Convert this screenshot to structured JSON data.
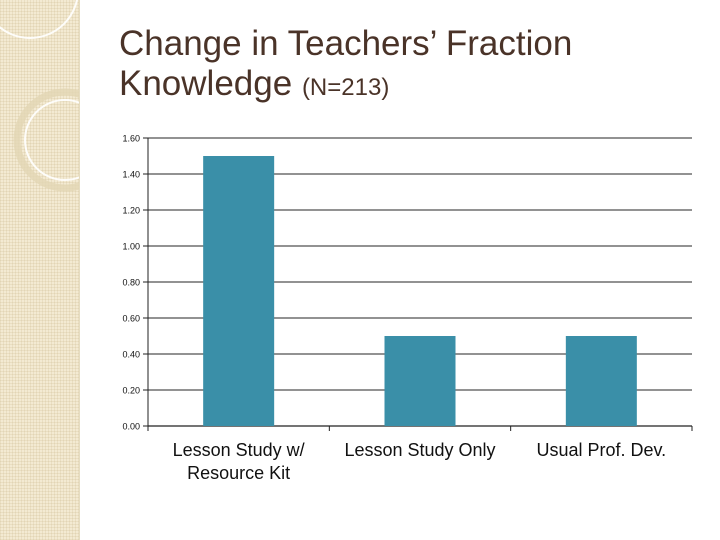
{
  "slide": {
    "title_main": "Change in Teachers’ Fraction Knowledge",
    "title_sub": "(N=213)"
  },
  "colors": {
    "bar": "#3a8fa8",
    "title": "#4a3328",
    "sidebar": "#f3ead2"
  },
  "chart_data": {
    "type": "bar",
    "categories": [
      "Lesson Study w/ Resource Kit",
      "Lesson Study Only",
      "Usual Prof. Dev."
    ],
    "category_lines": [
      [
        "Lesson Study w/",
        "Resource Kit"
      ],
      [
        "Lesson Study Only"
      ],
      [
        "Usual Prof. Dev."
      ]
    ],
    "values": [
      1.5,
      0.5,
      0.5
    ],
    "ylim": [
      0,
      1.6
    ],
    "ytick_labels": [
      "0.00",
      "0.20",
      "0.40",
      "0.60",
      "0.80",
      "1.00",
      "1.20",
      "1.40",
      "1.60"
    ],
    "grid": true,
    "legend": "none"
  }
}
